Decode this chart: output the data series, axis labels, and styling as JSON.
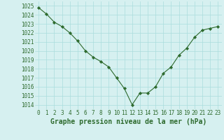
{
  "x": [
    0,
    1,
    2,
    3,
    4,
    5,
    6,
    7,
    8,
    9,
    10,
    11,
    12,
    13,
    14,
    15,
    16,
    17,
    18,
    19,
    20,
    21,
    22,
    23
  ],
  "y": [
    1024.8,
    1024.1,
    1023.2,
    1022.7,
    1022.0,
    1021.1,
    1020.0,
    1019.3,
    1018.8,
    1018.2,
    1017.0,
    1015.8,
    1014.0,
    1015.3,
    1015.3,
    1016.0,
    1017.5,
    1018.2,
    1019.5,
    1020.3,
    1021.5,
    1022.3,
    1022.5,
    1022.7
  ],
  "line_color": "#2d6a2d",
  "marker": "D",
  "marker_size": 2.2,
  "bg_color": "#d6f0f0",
  "grid_color": "#aadddd",
  "xlabel": "Graphe pression niveau de la mer (hPa)",
  "xlabel_color": "#2d6a2d",
  "xlabel_fontsize": 7.0,
  "ylabel_ticks": [
    1014,
    1015,
    1016,
    1017,
    1018,
    1019,
    1020,
    1021,
    1022,
    1023,
    1024,
    1025
  ],
  "xticks": [
    0,
    1,
    2,
    3,
    4,
    5,
    6,
    7,
    8,
    9,
    10,
    11,
    12,
    13,
    14,
    15,
    16,
    17,
    18,
    19,
    20,
    21,
    22,
    23
  ],
  "ylim": [
    1013.5,
    1025.5
  ],
  "xlim": [
    -0.5,
    23.5
  ],
  "tick_fontsize": 5.5,
  "tick_color": "#2d6a2d",
  "line_width": 0.8
}
